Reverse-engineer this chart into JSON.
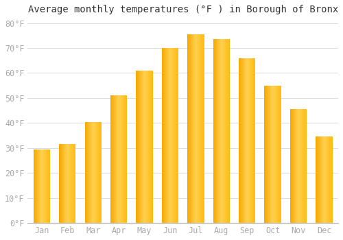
{
  "title": "Average monthly temperatures (°F ) in Borough of Bronx",
  "months": [
    "Jan",
    "Feb",
    "Mar",
    "Apr",
    "May",
    "Jun",
    "Jul",
    "Aug",
    "Sep",
    "Oct",
    "Nov",
    "Dec"
  ],
  "values": [
    29.5,
    31.5,
    40.5,
    51.0,
    61.0,
    70.0,
    75.5,
    73.5,
    66.0,
    55.0,
    45.5,
    34.5
  ],
  "bar_color_left": "#F5A800",
  "bar_color_center": "#FFD050",
  "bar_color_right": "#FFBB10",
  "background_color": "#FFFFFF",
  "grid_color": "#DDDDDD",
  "ytick_labels": [
    "0°F",
    "10°F",
    "20°F",
    "30°F",
    "40°F",
    "50°F",
    "60°F",
    "70°F",
    "80°F"
  ],
  "ytick_values": [
    0,
    10,
    20,
    30,
    40,
    50,
    60,
    70,
    80
  ],
  "ylim": [
    0,
    82
  ],
  "title_fontsize": 10,
  "tick_fontsize": 8.5,
  "tick_color": "#AAAAAA",
  "font_family": "monospace",
  "bar_width": 0.65,
  "n_gradient_slices": 50
}
